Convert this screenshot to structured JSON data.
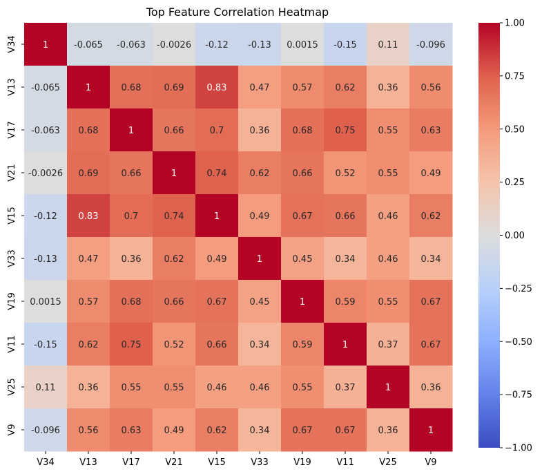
{
  "chart_data": {
    "type": "heatmap",
    "title": "Top Feature Correlation Heatmap",
    "xlabel": "",
    "ylabel": "",
    "x_labels": [
      "V34",
      "V13",
      "V17",
      "V21",
      "V15",
      "V33",
      "V19",
      "V11",
      "V25",
      "V9"
    ],
    "y_labels": [
      "V34",
      "V13",
      "V17",
      "V21",
      "V15",
      "V33",
      "V19",
      "V11",
      "V25",
      "V9"
    ],
    "values": [
      [
        1,
        -0.065,
        -0.063,
        -0.0026,
        -0.12,
        -0.13,
        0.0015,
        -0.15,
        0.11,
        -0.096
      ],
      [
        -0.065,
        1,
        0.68,
        0.69,
        0.83,
        0.47,
        0.57,
        0.62,
        0.36,
        0.56
      ],
      [
        -0.063,
        0.68,
        1,
        0.66,
        0.7,
        0.36,
        0.68,
        0.75,
        0.55,
        0.63
      ],
      [
        -0.0026,
        0.69,
        0.66,
        1,
        0.74,
        0.62,
        0.66,
        0.52,
        0.55,
        0.49
      ],
      [
        -0.12,
        0.83,
        0.7,
        0.74,
        1,
        0.49,
        0.67,
        0.66,
        0.46,
        0.62
      ],
      [
        -0.13,
        0.47,
        0.36,
        0.62,
        0.49,
        1,
        0.45,
        0.34,
        0.46,
        0.34
      ],
      [
        0.0015,
        0.57,
        0.68,
        0.66,
        0.67,
        0.45,
        1,
        0.59,
        0.55,
        0.67
      ],
      [
        -0.15,
        0.62,
        0.75,
        0.52,
        0.66,
        0.34,
        0.59,
        1,
        0.37,
        0.67
      ],
      [
        0.11,
        0.36,
        0.55,
        0.55,
        0.46,
        0.46,
        0.55,
        0.37,
        1,
        0.36
      ],
      [
        -0.096,
        0.56,
        0.63,
        0.49,
        0.62,
        0.34,
        0.67,
        0.67,
        0.36,
        1
      ]
    ],
    "cell_labels": [
      [
        "1",
        "-0.065",
        "-0.063",
        "-0.0026",
        "-0.12",
        "-0.13",
        "0.0015",
        "-0.15",
        "0.11",
        "-0.096"
      ],
      [
        "-0.065",
        "1",
        "0.68",
        "0.69",
        "0.83",
        "0.47",
        "0.57",
        "0.62",
        "0.36",
        "0.56"
      ],
      [
        "-0.063",
        "0.68",
        "1",
        "0.66",
        "0.7",
        "0.36",
        "0.68",
        "0.75",
        "0.55",
        "0.63"
      ],
      [
        "-0.0026",
        "0.69",
        "0.66",
        "1",
        "0.74",
        "0.62",
        "0.66",
        "0.52",
        "0.55",
        "0.49"
      ],
      [
        "-0.12",
        "0.83",
        "0.7",
        "0.74",
        "1",
        "0.49",
        "0.67",
        "0.66",
        "0.46",
        "0.62"
      ],
      [
        "-0.13",
        "0.47",
        "0.36",
        "0.62",
        "0.49",
        "1",
        "0.45",
        "0.34",
        "0.46",
        "0.34"
      ],
      [
        "0.0015",
        "0.57",
        "0.68",
        "0.66",
        "0.67",
        "0.45",
        "1",
        "0.59",
        "0.55",
        "0.67"
      ],
      [
        "-0.15",
        "0.62",
        "0.75",
        "0.52",
        "0.66",
        "0.34",
        "0.59",
        "1",
        "0.37",
        "0.67"
      ],
      [
        "0.11",
        "0.36",
        "0.55",
        "0.55",
        "0.46",
        "0.46",
        "0.55",
        "0.37",
        "1",
        "0.36"
      ],
      [
        "-0.096",
        "0.56",
        "0.63",
        "0.49",
        "0.62",
        "0.34",
        "0.67",
        "0.67",
        "0.36",
        "1"
      ]
    ],
    "vmin": -1,
    "vmax": 1,
    "colormap": "coolwarm",
    "colorbar_ticks": [
      "1.00",
      "0.75",
      "0.50",
      "0.25",
      "0.00",
      "−0.25",
      "−0.50",
      "−0.75",
      "−1.00"
    ],
    "colorbar_tick_values": [
      1,
      0.75,
      0.5,
      0.25,
      0,
      -0.25,
      -0.5,
      -0.75,
      -1
    ],
    "grid": false,
    "annotated": true
  }
}
